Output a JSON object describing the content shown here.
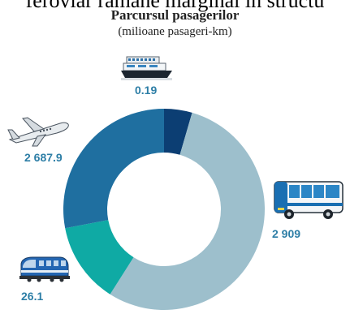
{
  "header": {
    "top_line": "feroviar rămâne marginal în structu",
    "title": "Parcursul pasagerilor",
    "subtitle": "(milioane pasageri-km)"
  },
  "chart_data": {
    "type": "pie",
    "categories": [
      "Maritim",
      "Auto",
      "Feroviar",
      "Aerian"
    ],
    "icons": [
      "ship-icon",
      "bus-icon",
      "train-icon",
      "airplane-icon"
    ],
    "values": [
      0.19,
      2909,
      26.1,
      2687.9
    ],
    "labels": [
      "0.19",
      "2 909",
      "26.1",
      "2 687.9"
    ],
    "colors": [
      "#0c3e73",
      "#9dbfcc",
      "#0faaa4",
      "#1f6fa0"
    ],
    "label_color": "#2d7ea6"
  }
}
